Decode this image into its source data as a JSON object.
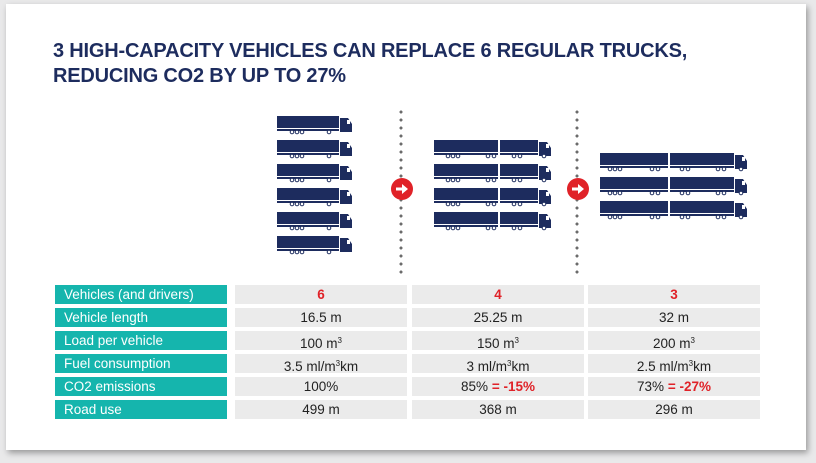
{
  "title": {
    "line1": "3 HIGH-CAPACITY VEHICLES CAN REPLACE 6 REGULAR TRUCKS,",
    "line2": "REDUCING CO2 BY UP TO 27%"
  },
  "truck_counts": [
    6,
    4,
    3
  ],
  "truck_types": [
    "regular-truck",
    "truck-with-trailer",
    "truck-with-two-trailers"
  ],
  "colors": {
    "navy": "#1d2c5e",
    "teal": "#15b5ad",
    "red": "#e02228",
    "cell_bg": "#ebebeb"
  },
  "table": {
    "rows": [
      {
        "label": "Vehicles (and drivers)",
        "cells": [
          {
            "main": "6",
            "highlight": true
          },
          {
            "main": "4",
            "highlight": true
          },
          {
            "main": "3",
            "highlight": true
          }
        ]
      },
      {
        "label": "Vehicle length",
        "cells": [
          {
            "main": "16.5 m"
          },
          {
            "main": "25.25 m"
          },
          {
            "main": "32 m"
          }
        ]
      },
      {
        "label": "Load per vehicle",
        "cells": [
          {
            "main": "100 m",
            "sup": "3"
          },
          {
            "main": "150 m",
            "sup": "3"
          },
          {
            "main": "200 m",
            "sup": "3"
          }
        ]
      },
      {
        "label": "Fuel consumption",
        "cells": [
          {
            "main": "3.5 ml/m",
            "sup": "3",
            "after": "km"
          },
          {
            "main": "3 ml/m",
            "sup": "3",
            "after": "km"
          },
          {
            "main": "2.5 ml/m",
            "sup": "3",
            "after": "km"
          }
        ]
      },
      {
        "label": "CO2 emissions",
        "cells": [
          {
            "main": "100%"
          },
          {
            "main": "85%",
            "extra": " = -15%"
          },
          {
            "main": "73%",
            "extra": " = -27%"
          }
        ]
      },
      {
        "label": "Road use",
        "cells": [
          {
            "main": "499 m"
          },
          {
            "main": "368 m"
          },
          {
            "main": "296 m"
          }
        ]
      }
    ]
  }
}
